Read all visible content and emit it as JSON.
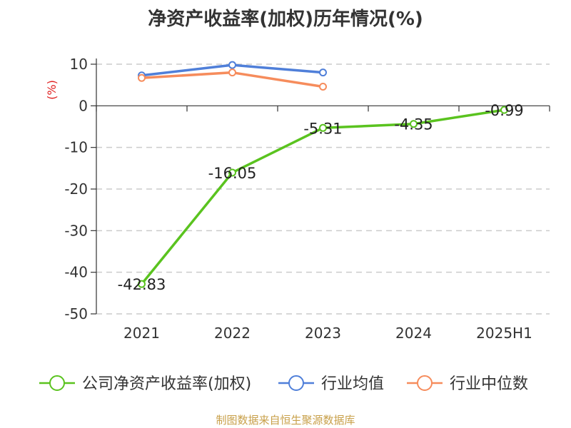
{
  "chart_data": {
    "type": "line",
    "title": "净资产收益率(加权)历年情况(%)",
    "ylabel": "(%)",
    "ylim": [
      -50,
      10
    ],
    "yticks": [
      10,
      0,
      -10,
      -20,
      -30,
      -40,
      -50
    ],
    "categories": [
      "2021",
      "2022",
      "2023",
      "2024",
      "2025H1"
    ],
    "grid": true,
    "legend_position": "bottom",
    "series": [
      {
        "name": "公司净资产收益率(加权)",
        "color": "#5ac31f",
        "values": [
          -42.83,
          -16.05,
          -5.31,
          -4.35,
          -0.99
        ],
        "labels": [
          "-42.83",
          "-16.05",
          "-5.31",
          "-4.35",
          "-0.99"
        ]
      },
      {
        "name": "行业均值",
        "color": "#4f7fd9",
        "values": [
          7.3,
          9.8,
          8.0,
          null,
          null
        ]
      },
      {
        "name": "行业中位数",
        "color": "#f68c5c",
        "values": [
          6.7,
          8.0,
          4.6,
          null,
          null
        ]
      }
    ]
  },
  "source": "制图数据来自恒生聚源数据库"
}
